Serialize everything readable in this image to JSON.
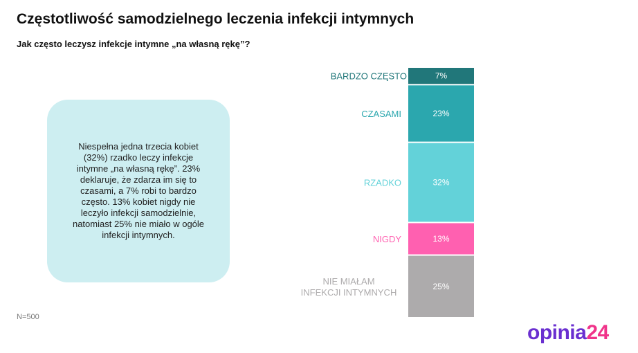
{
  "chart_data": {
    "type": "bar",
    "stacked": true,
    "title": "Częstotliwość samodzielnego leczenia infekcji intymnych",
    "subtitle": "Jak często leczysz infekcje intymne „na własną rękę”?",
    "categories": [
      "BARDZO CZĘSTO",
      "CZASAMI",
      "RZADKO",
      "NIGDY",
      "NIE MIAŁAM INFEKCJI INTYMNYCH"
    ],
    "category_lines": [
      [
        "BARDZO CZĘSTO"
      ],
      [
        "CZASAMI"
      ],
      [
        "RZADKO"
      ],
      [
        "NIGDY"
      ],
      [
        "NIE MIAŁAM",
        "INFEKCJI INTYMNYCH"
      ]
    ],
    "values": [
      7,
      23,
      32,
      13,
      25
    ],
    "value_labels": [
      "7%",
      "23%",
      "32%",
      "13%",
      "25%"
    ],
    "colors": [
      "#21777a",
      "#2ba7ae",
      "#63d2d9",
      "#ff60b0",
      "#adabac"
    ],
    "label_colors": [
      "#21777a",
      "#2ba7ae",
      "#63d2d9",
      "#ff60b0",
      "#adabac"
    ],
    "unit": "%"
  },
  "note": "Niespełna jedna trzecia kobiet (32%) rzadko leczy infekcje intymne „na własną rękę”. 23% deklaruje, że zdarza im się to czasami, a 7% robi to bardzo często. 13% kobiet nigdy nie leczyło infekcji samodzielnie, natomiast 25% nie miało w ogóle infekcji intymnych.",
  "sample": "N=500",
  "logo": {
    "part1": "opinia",
    "part2": "24"
  }
}
